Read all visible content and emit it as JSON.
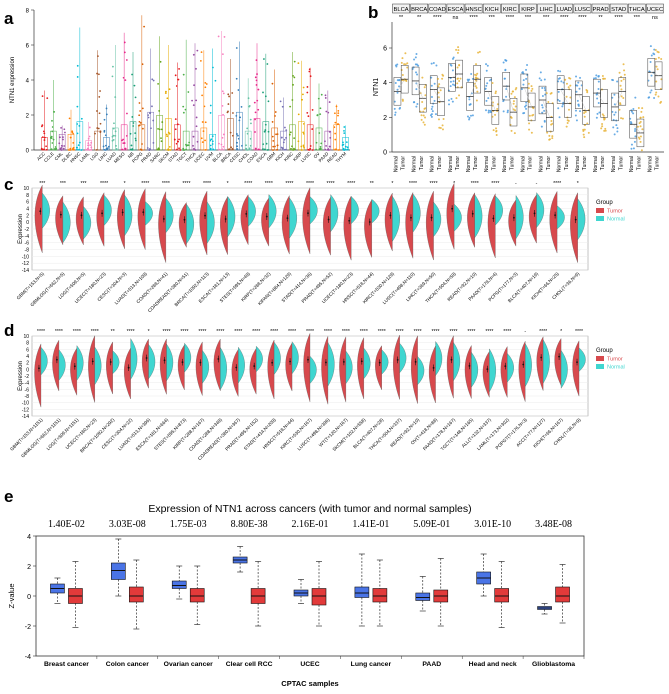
{
  "panels": {
    "a": "a",
    "b": "b",
    "c": "c",
    "d": "d",
    "e": "e"
  },
  "colors": {
    "tumor": "#d7494d",
    "normal": "#3fd6d0",
    "blue": "#4a74e6",
    "red": "#e23a3a",
    "b_normal": "#4f9ee0",
    "b_tumor": "#e8b43a"
  },
  "chart_data": [
    {
      "type": "scatter",
      "ylabel": "NTN1 expression",
      "ylim": [
        0,
        8
      ],
      "yticks": [
        "0",
        "2",
        "4",
        "6",
        "8"
      ],
      "categories": [
        "ACC",
        "CCLE",
        "CML",
        "DLBC",
        "HNSC",
        "LAML",
        "LGG",
        "LIHC",
        "LUAD",
        "MESO",
        "NB",
        "PCPG",
        "PRAD",
        "SARC",
        "SKCM",
        "STAD",
        "TGCT",
        "THCA",
        "UCEC",
        "UVM",
        "BLCA",
        "BRCA",
        "CESC",
        "CHOL",
        "COAD",
        "ESCA",
        "GBM",
        "KICH",
        "KIRC",
        "KIRP",
        "LUSC",
        "OV",
        "PAAD",
        "READ",
        "THYM"
      ],
      "medians": [
        0.4,
        0.6,
        0.5,
        0.5,
        0.9,
        0.3,
        0.6,
        0.4,
        0.7,
        0.8,
        0.9,
        0.8,
        1.2,
        1.1,
        1.0,
        0.8,
        0.6,
        0.6,
        0.7,
        0.5,
        1.1,
        1.0,
        1.2,
        0.6,
        1.0,
        0.9,
        0.7,
        0.6,
        0.8,
        0.9,
        0.8,
        0.7,
        0.6,
        0.8,
        0.4
      ],
      "max": [
        3.4,
        4.0,
        1.4,
        2.3,
        7.0,
        1.6,
        5.7,
        2.6,
        6.0,
        6.7,
        5.6,
        7.7,
        5.8,
        6.5,
        6.0,
        5.0,
        6.3,
        6.1,
        5.7,
        5.8,
        6.8,
        5.2,
        6.2,
        4.1,
        6.1,
        5.5,
        4.6,
        3.0,
        5.6,
        5.1,
        4.7,
        3.8,
        3.4,
        2.6,
        1.4
      ]
    },
    {
      "type": "box",
      "ylabel": "NTN1",
      "ylim": [
        0,
        7.5
      ],
      "yticks": [
        "0",
        "2",
        "4",
        "6"
      ],
      "cancers": [
        "BLCA",
        "BRCA",
        "COAD",
        "ESCA",
        "HNSC",
        "KICH",
        "KIRC",
        "KIRP",
        "LIHC",
        "LUAD",
        "LUSC",
        "PRAD",
        "STAD",
        "THCA",
        "UCEC"
      ],
      "signif": [
        "**",
        "**",
        "****",
        "ns",
        "****",
        "***",
        "****",
        "***",
        "***",
        "****",
        "****",
        "**",
        "****",
        "***",
        "ns"
      ],
      "normal_median": [
        3.5,
        4.1,
        3.6,
        4.3,
        3.2,
        3.5,
        3.8,
        3.7,
        3.0,
        3.6,
        3.3,
        3.4,
        2.6,
        1.6,
        4.6
      ],
      "tumor_median": [
        4.2,
        3.1,
        2.9,
        4.5,
        4.2,
        2.4,
        2.3,
        2.6,
        2.0,
        2.8,
        2.4,
        2.8,
        3.5,
        1.1,
        4.4
      ],
      "xlabels": [
        "Normal",
        "Tumor"
      ]
    },
    {
      "type": "violin",
      "ylabel": "Expression",
      "ylim": [
        -14,
        10
      ],
      "yticks": [
        "10",
        "8",
        "6",
        "4",
        "2",
        "0",
        "-2",
        "-4",
        "-6",
        "-8",
        "-10",
        "-12",
        "-14"
      ],
      "legend_title": "Group",
      "legend": [
        "Tumor",
        "Normal"
      ],
      "categories": [
        "GBM(T=153,N=5)",
        "GBMLGG(T=662,N=5)",
        "LGG(T=509,N=5)",
        "UCEC(T=180,N=23)",
        "CESC(T=304,N=3)",
        "LUAD(T=513,N=109)",
        "COAD(T=288,N=41)",
        "COADREAD(T=380,N=51)",
        "BRCA(T=1092,N=113)",
        "ESCA(T=181,N=13)",
        "STES(T=595,N=49)",
        "KIRP(T=288,N=32)",
        "KIPAN(T=884,N=129)",
        "STAD(T=414,N=36)",
        "PRAD(T=495,N=52)",
        "UCEC(T=180,N=23)",
        "HNSC(T=518,N=44)",
        "KIRC(T=530,N=129)",
        "LUSC(T=498,N=110)",
        "LIHC(T=369,N=50)",
        "THCA(T=504,N=59)",
        "READ(T=92,N=10)",
        "PAAD(T=178,N=4)",
        "PCPG(T=177,N=3)",
        "BLCA(T=407,N=19)",
        "KICH(T=66,N=25)",
        "CHOL(T=36,N=9)"
      ],
      "signif": [
        "***",
        "***",
        "***",
        "****",
        "*",
        "****",
        "****",
        "****",
        "****",
        "*",
        "****",
        "****",
        "****",
        "****",
        "****",
        "****",
        "**",
        "*",
        "****",
        "****",
        "*",
        "****",
        "****",
        "-",
        "-",
        "****",
        "*"
      ]
    },
    {
      "type": "violin",
      "ylabel": "Expression",
      "ylim": [
        -14,
        10
      ],
      "yticks": [
        "10",
        "8",
        "6",
        "4",
        "2",
        "0",
        "-2",
        "-4",
        "-6",
        "-8",
        "-10",
        "-12",
        "-14"
      ],
      "legend_title": "Group",
      "legend": [
        "Tumor",
        "Normal"
      ],
      "categories": [
        "GBM(T=153,N=1151)",
        "GBMLGG(T=662,N=1151)",
        "LGG(T=509,N=1151)",
        "UCEC(T=180,N=23)",
        "BRCA(T=1092,N=292)",
        "CESC(T=304,N=22)",
        "LUAD(T=513,N=396)",
        "ESCA(T=181,N=664)",
        "STES(T=595,N=873)",
        "KIRP(T=288,N=167)",
        "COAD(T=288,N=349)",
        "COADREAD(T=380,N=367)",
        "PRAD(T=495,N=152)",
        "STAD(T=414,N=209)",
        "HNSC(T=518,N=44)",
        "KIRC(T=530,N=167)",
        "LUSC(T=498,N=396)",
        "WT(T=120,N=167)",
        "SKCM(T=102,N=558)",
        "BLCA(T=407,N=28)",
        "THCA(T=504,N=337)",
        "READ(T=92,N=10)",
        "OV(T=418,N=88)",
        "PAAD(T=178,N=167)",
        "TGCT(T=148,N=165)",
        "ALL(T=132,N=337)",
        "LAML(T=173,N=302)",
        "POPGT(T=176,N=3)",
        "ACC(T=77,N=127)",
        "KICH(T=66,N=167)",
        "CHOL(T=36,N=9)"
      ],
      "signif": [
        "****",
        "****",
        "****",
        "****",
        "**",
        "****",
        "*",
        "****",
        "****",
        "****",
        "****",
        "****",
        "****",
        "****",
        "****",
        "****",
        "****",
        "****",
        "****",
        "****",
        "****",
        "****",
        "****",
        "****",
        "****",
        "****",
        "****",
        "-",
        "****",
        "*",
        "****"
      ]
    },
    {
      "type": "box",
      "title": "Expression of NTN1 across cancers (with tumor and normal samples)",
      "xlabel": "CPTAC samples",
      "ylabel": "Z-value",
      "ylim": [
        -4,
        4
      ],
      "yticks": [
        "4",
        "2",
        "0",
        "-2",
        "-4"
      ],
      "categories": [
        "Breast cancer",
        "Colon cancer",
        "Ovarian cancer",
        "Clear cell RCC",
        "UCEC",
        "Lung cancer",
        "PAAD",
        "Head and neck",
        "Glioblastoma"
      ],
      "pvalues": [
        "1.40E-02",
        "3.03E-08",
        "1.75E-03",
        "8.80E-38",
        "2.16E-01",
        "1.41E-01",
        "5.09E-01",
        "3.01E-10",
        "3.48E-08"
      ],
      "series": [
        {
          "q1": [
            0.2,
            1.1,
            0.5,
            2.2,
            0.0,
            -0.1,
            -0.3,
            0.8,
            -0.9
          ],
          "median": [
            0.5,
            1.7,
            0.7,
            2.4,
            0.2,
            0.2,
            -0.1,
            1.2,
            -0.8
          ],
          "q3": [
            0.8,
            2.2,
            1.0,
            2.6,
            0.4,
            0.6,
            0.2,
            1.6,
            -0.7
          ],
          "min": [
            -0.5,
            0.0,
            -0.2,
            1.6,
            -0.5,
            -2.0,
            -1.0,
            0.0,
            -1.2
          ],
          "max": [
            1.2,
            3.8,
            2.0,
            3.3,
            1.1,
            2.8,
            1.3,
            2.8,
            -0.5
          ]
        },
        {
          "q1": [
            -0.5,
            -0.4,
            -0.4,
            -0.5,
            -0.6,
            -0.4,
            -0.4,
            -0.4,
            -0.4
          ],
          "median": [
            0.0,
            0.0,
            0.0,
            0.0,
            0.0,
            0.0,
            0.0,
            0.0,
            0.0
          ],
          "q3": [
            0.5,
            0.6,
            0.5,
            0.5,
            0.5,
            0.5,
            0.4,
            0.5,
            0.6
          ],
          "min": [
            -2.1,
            -2.2,
            -1.9,
            -2.0,
            -2.0,
            -2.0,
            -2.0,
            -2.1,
            -1.8
          ],
          "max": [
            2.3,
            2.4,
            2.0,
            2.3,
            2.3,
            2.4,
            2.5,
            2.3,
            2.1
          ]
        }
      ]
    }
  ]
}
